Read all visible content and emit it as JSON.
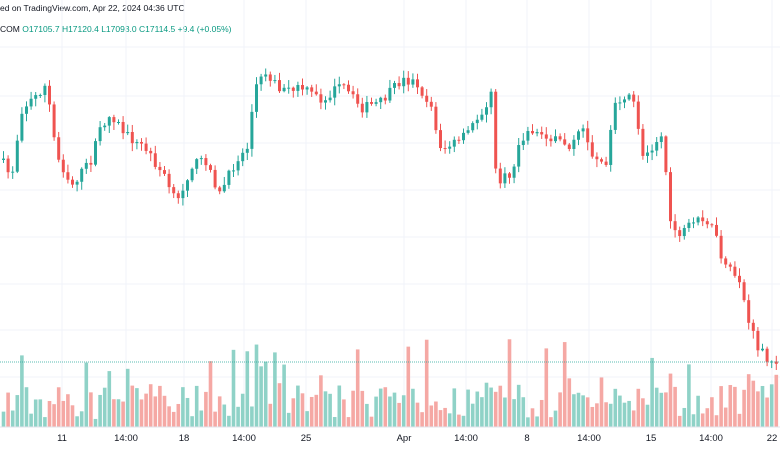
{
  "header": {
    "published": "ed on TradingView.com, Apr 22, 2024 04:36 UTC",
    "symbol": "COM",
    "open": "O17105.7",
    "high": "H17120.4",
    "low": "L17093.0",
    "close": "C17114.5",
    "change": "+9.4 (+0.05%)"
  },
  "colors": {
    "up": "#26a69a",
    "down": "#ef5350",
    "up_vol": "#8fd2c7",
    "down_vol": "#f5a8a4",
    "grid": "#f0f3fa",
    "last_line": "#26a69a"
  },
  "chart_data": {
    "type": "candlestick",
    "timeframe": "2h",
    "x_ticks": [
      "11",
      "14:00",
      "18",
      "14:00",
      "25",
      "Apr",
      "14:00",
      "8",
      "14:00",
      "15",
      "14:00",
      "22"
    ],
    "last_close": 17114.5
  }
}
